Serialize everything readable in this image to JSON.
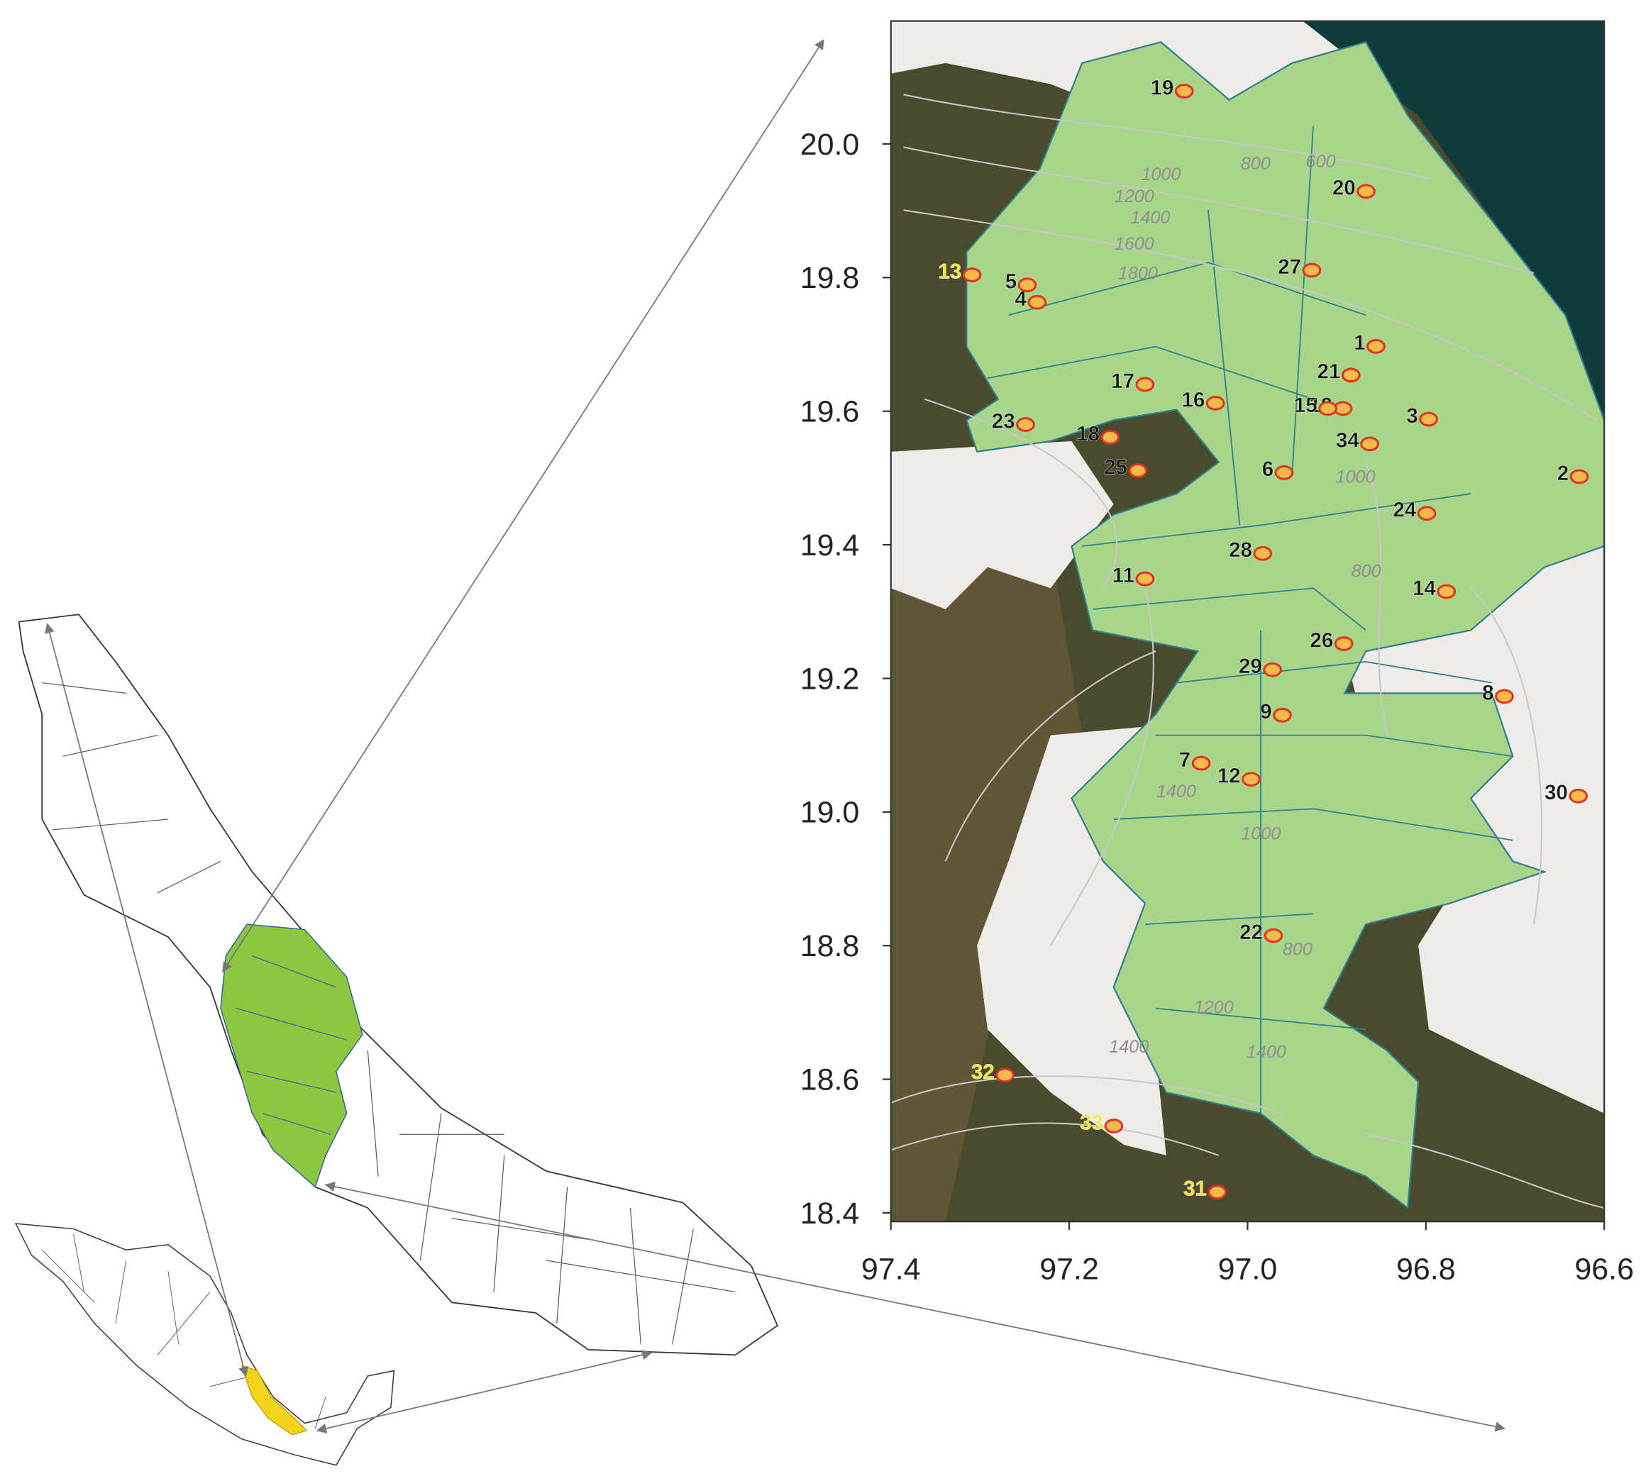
{
  "map": {
    "xlim": [
      97.4,
      96.6
    ],
    "ylim": [
      18.387,
      20.184
    ],
    "xticks": [
      97.4,
      97.2,
      {
        "value": 97,
        "label": "97.0"
      },
      96.8,
      96.6
    ],
    "yticks": [
      {
        "value": 20,
        "label": "20.0"
      },
      19.8,
      19.6,
      19.4,
      19.2,
      {
        "value": 19,
        "label": "19.0"
      },
      18.8,
      18.6,
      18.4
    ],
    "marker_fill": "#f6b94c",
    "marker_stroke": "#e2321e",
    "stations": [
      {
        "id": "1",
        "lon": 96.856,
        "lat": 19.697,
        "label_color": "#111111"
      },
      {
        "id": "2",
        "lon": 96.628,
        "lat": 19.502,
        "label_color": "#111111"
      },
      {
        "id": "3",
        "lon": 96.797,
        "lat": 19.588,
        "label_color": "#111111"
      },
      {
        "id": "4",
        "lon": 97.236,
        "lat": 19.763,
        "label_color": "#111111"
      },
      {
        "id": "5",
        "lon": 97.247,
        "lat": 19.789,
        "label_color": "#111111"
      },
      {
        "id": "6",
        "lon": 96.959,
        "lat": 19.508,
        "label_color": "#111111"
      },
      {
        "id": "7",
        "lon": 97.052,
        "lat": 19.073,
        "label_color": "#111111"
      },
      {
        "id": "8",
        "lon": 96.712,
        "lat": 19.173,
        "label_color": "#111111"
      },
      {
        "id": "9",
        "lon": 96.961,
        "lat": 19.145,
        "label_color": "#111111"
      },
      {
        "id": "10",
        "lon": 96.893,
        "lat": 19.604,
        "label_color": "#111111"
      },
      {
        "id": "11",
        "lon": 97.115,
        "lat": 19.349,
        "label_color": "#111111"
      },
      {
        "id": "12",
        "lon": 96.996,
        "lat": 19.049,
        "label_color": "#111111"
      },
      {
        "id": "13",
        "lon": 97.309,
        "lat": 19.804,
        "label_color": "#f2e23a"
      },
      {
        "id": "14",
        "lon": 96.777,
        "lat": 19.33,
        "label_color": "#111111"
      },
      {
        "id": "15",
        "lon": 96.91,
        "lat": 19.604,
        "label_color": "#111111"
      },
      {
        "id": "16",
        "lon": 97.036,
        "lat": 19.612,
        "label_color": "#111111"
      },
      {
        "id": "17",
        "lon": 97.115,
        "lat": 19.64,
        "label_color": "#111111"
      },
      {
        "id": "18",
        "lon": 97.154,
        "lat": 19.561,
        "label_color": "#111111"
      },
      {
        "id": "19",
        "lon": 97.071,
        "lat": 20.079,
        "label_color": "#111111"
      },
      {
        "id": "20",
        "lon": 96.867,
        "lat": 19.929,
        "label_color": "#111111"
      },
      {
        "id": "21",
        "lon": 96.884,
        "lat": 19.654,
        "label_color": "#111111"
      },
      {
        "id": "22",
        "lon": 96.971,
        "lat": 18.815,
        "label_color": "#111111"
      },
      {
        "id": "23",
        "lon": 97.249,
        "lat": 19.58,
        "label_color": "#111111"
      },
      {
        "id": "24",
        "lon": 96.799,
        "lat": 19.447,
        "label_color": "#111111"
      },
      {
        "id": "25",
        "lon": 97.123,
        "lat": 19.511,
        "label_color": "#111111"
      },
      {
        "id": "26",
        "lon": 96.892,
        "lat": 19.252,
        "label_color": "#111111"
      },
      {
        "id": "27",
        "lon": 96.928,
        "lat": 19.811,
        "label_color": "#111111"
      },
      {
        "id": "28",
        "lon": 96.983,
        "lat": 19.387,
        "label_color": "#111111"
      },
      {
        "id": "29",
        "lon": 96.972,
        "lat": 19.213,
        "label_color": "#111111"
      },
      {
        "id": "30",
        "lon": 96.629,
        "lat": 19.024,
        "label_color": "#111111"
      },
      {
        "id": "31",
        "lon": 97.034,
        "lat": 18.431,
        "label_color": "#f2e23a"
      },
      {
        "id": "32",
        "lon": 97.272,
        "lat": 18.606,
        "label_color": "#f2e23a"
      },
      {
        "id": "33",
        "lon": 97.15,
        "lat": 18.53,
        "label_color": "#f2e23a"
      },
      {
        "id": "34",
        "lon": 96.863,
        "lat": 19.551,
        "label_color": "#111111"
      }
    ],
    "contour_labels": [
      {
        "text": "600",
        "lon": 96.918,
        "lat": 19.972
      },
      {
        "text": "800",
        "lon": 96.991,
        "lat": 19.969
      },
      {
        "text": "1000",
        "lon": 97.097,
        "lat": 19.953
      },
      {
        "text": "1200",
        "lon": 97.127,
        "lat": 19.92
      },
      {
        "text": "1400",
        "lon": 97.109,
        "lat": 19.888
      },
      {
        "text": "1600",
        "lon": 97.127,
        "lat": 19.849
      },
      {
        "text": "1800",
        "lon": 97.123,
        "lat": 19.805
      },
      {
        "text": "1000",
        "lon": 96.879,
        "lat": 19.5
      },
      {
        "text": "800",
        "lon": 96.867,
        "lat": 19.359
      },
      {
        "text": "1400",
        "lon": 97.08,
        "lat": 19.029
      },
      {
        "text": "1000",
        "lon": 96.985,
        "lat": 18.966
      },
      {
        "text": "800",
        "lon": 96.944,
        "lat": 18.793
      },
      {
        "text": "1200",
        "lon": 97.038,
        "lat": 18.706
      },
      {
        "text": "1400",
        "lon": 96.979,
        "lat": 18.639
      },
      {
        "text": "1400",
        "lon": 97.133,
        "lat": 18.647
      }
    ]
  }
}
